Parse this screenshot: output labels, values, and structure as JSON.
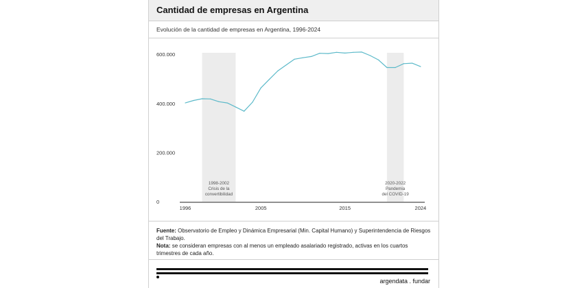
{
  "header": {
    "title": "Cantidad de empresas en Argentina",
    "subtitle": "Evolución de la cantidad de empresas en Argentina, 1996-2024"
  },
  "chart_data": {
    "type": "line",
    "title": "Cantidad de empresas en Argentina",
    "subtitle": "Evolución de la cantidad de empresas en Argentina, 1996-2024",
    "xlabel": "",
    "ylabel": "",
    "xlim": [
      1996,
      2024.5
    ],
    "ylim": [
      0,
      620000
    ],
    "x_ticks": [
      1996,
      2005,
      2015,
      2024
    ],
    "x_tick_labels": [
      "1996",
      "2005",
      "2015",
      "2024"
    ],
    "y_ticks": [
      0,
      200000,
      400000,
      600000
    ],
    "y_tick_labels": [
      "0",
      "200.000",
      "400.000",
      "600.000"
    ],
    "grid": false,
    "line_color": "#5bb9c9",
    "band_color": "#ececec",
    "series": [
      {
        "name": "Cantidad de empresas",
        "x": [
          1996,
          1997,
          1998,
          1999,
          2000,
          2001,
          2002,
          2003,
          2004,
          2005,
          2006,
          2007,
          2008,
          2009,
          2010,
          2011,
          2012,
          2013,
          2014,
          2015,
          2016,
          2017,
          2018,
          2019,
          2020,
          2021,
          2022,
          2023,
          2024
        ],
        "values": [
          402000,
          412000,
          419000,
          418000,
          407000,
          402000,
          385000,
          368000,
          405000,
          463000,
          498000,
          532000,
          556000,
          580000,
          586000,
          591000,
          604000,
          603000,
          608000,
          605000,
          608000,
          609000,
          595000,
          577000,
          546000,
          546000,
          562000,
          564000,
          550000
        ]
      }
    ],
    "annotations": [
      {
        "x_start": 1998,
        "x_end": 2002,
        "lines": [
          "1998-2002",
          "Crisis de la",
          "convertibilidad"
        ]
      },
      {
        "x_start": 2020,
        "x_end": 2022,
        "lines": [
          "2020-2022",
          "Pandemia",
          "del COVID-19"
        ]
      }
    ]
  },
  "notes": {
    "source_label": "Fuente:",
    "source_text": "Observatorio de Empleo y Dinámica Empresarial (Min. Capital Humano) y Superintendencia de Riesgos del Trabajo.",
    "note_label": "Nota:",
    "note_text": "se consideran empresas con al menos un empleado asalariado registrado, activas en los cuartos trimestres de cada año."
  },
  "footer": {
    "brand": "argendata . fundar"
  }
}
